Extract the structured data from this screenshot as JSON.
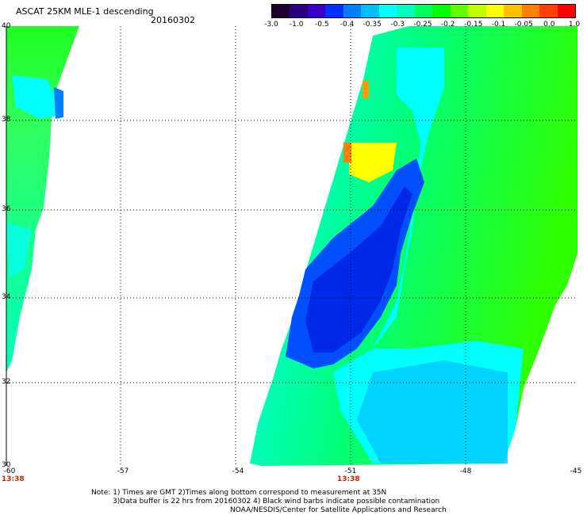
{
  "title": "ASCAT 25KM MLE-1 descending",
  "date": "20160302",
  "colorbar": {
    "labels": [
      "-3.0",
      "-1.0",
      "-0.5",
      "-0.4",
      "-0.35",
      "-0.3",
      "-0.25",
      "-0.2",
      "-0.15",
      "-0.1",
      "-0.05",
      "0.0",
      "1.0"
    ],
    "colors": [
      "#1a0030",
      "#2a0080",
      "#3a00c8",
      "#0030ff",
      "#0080ff",
      "#00c0ff",
      "#00ffff",
      "#00ffc0",
      "#00ff60",
      "#00ff00",
      "#60ff00",
      "#c0ff00",
      "#ffff00",
      "#ffc000",
      "#ff8000",
      "#ff4000",
      "#ff0000"
    ]
  },
  "axes": {
    "x_labels": [
      "-60",
      "-57",
      "-54",
      "-51",
      "-48",
      "-45"
    ],
    "y_labels": [
      "40",
      "38",
      "36",
      "34",
      "32",
      "30"
    ]
  },
  "pass_times": [
    "13:38",
    "13:38"
  ],
  "notes": [
    "Note: 1) Times are GMT 2)Times along bottom correspond to measurement at 35N",
    "3)Data buffer is 22 hrs from 20160302 4) Black wind barbs indicate possible contamination",
    "NOAA/NESDIS/Center for Satellite Applications and Research"
  ]
}
